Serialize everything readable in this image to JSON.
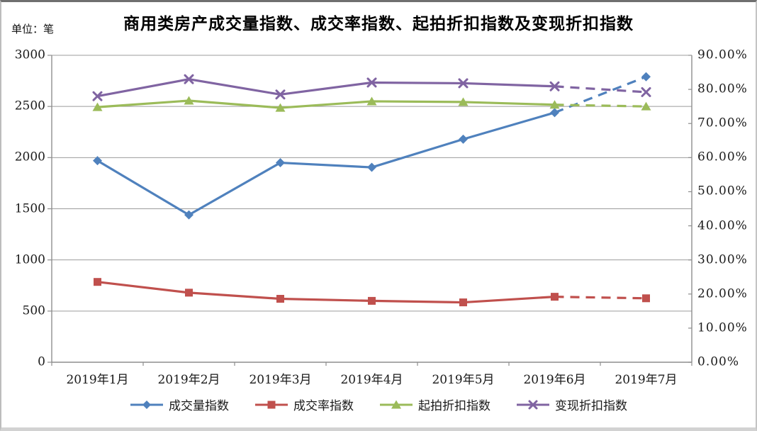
{
  "chart_data": {
    "type": "line",
    "title": "商用类房产成交量指数、成交率指数、起拍折扣指数及变现折扣指数",
    "unit_label": "单位：笔",
    "categories": [
      "2019年1月",
      "2019年2月",
      "2019年3月",
      "2019年4月",
      "2019年5月",
      "2019年6月",
      "2019年7月"
    ],
    "left_axis": {
      "max": 3000,
      "labels": [
        "3000",
        "2500",
        "2000",
        "1500",
        "1000",
        "500",
        "0"
      ],
      "values": [
        3000,
        2500,
        2000,
        1500,
        1000,
        500,
        0
      ]
    },
    "right_axis": {
      "max": 90,
      "labels": [
        "90.00%",
        "80.00%",
        "70.00%",
        "60.00%",
        "50.00%",
        "40.00%",
        "30.00%",
        "20.00%",
        "10.00%",
        "0.00%"
      ],
      "values": [
        90,
        80,
        70,
        60,
        50,
        40,
        30,
        20,
        10,
        0
      ]
    },
    "series": [
      {
        "name": "成交量指数",
        "axis": "left",
        "color": "#4F81BD",
        "marker": "diamond",
        "dashed_from": 5,
        "values": [
          1970,
          1440,
          1950,
          1905,
          2180,
          2440,
          2790
        ]
      },
      {
        "name": "成交率指数",
        "axis": "left",
        "color": "#C0504D",
        "marker": "square",
        "dashed_from": 5,
        "values": [
          785,
          680,
          620,
          600,
          585,
          640,
          625
        ]
      },
      {
        "name": "起拍折扣指数",
        "axis": "right",
        "color": "#9BBB59",
        "marker": "triangle",
        "dashed_from": 5,
        "values": [
          74.8,
          76.7,
          74.6,
          76.5,
          76.3,
          75.5,
          75.0
        ]
      },
      {
        "name": "变现折扣指数",
        "axis": "right",
        "color": "#8064A2",
        "marker": "x",
        "dashed_from": 5,
        "values": [
          78.0,
          83.0,
          78.5,
          82.0,
          81.8,
          80.9,
          79.2
        ]
      }
    ],
    "grid": true,
    "legend_position": "bottom",
    "axis_color": "#8e8e8e",
    "grid_color": "#9c9c9c"
  }
}
